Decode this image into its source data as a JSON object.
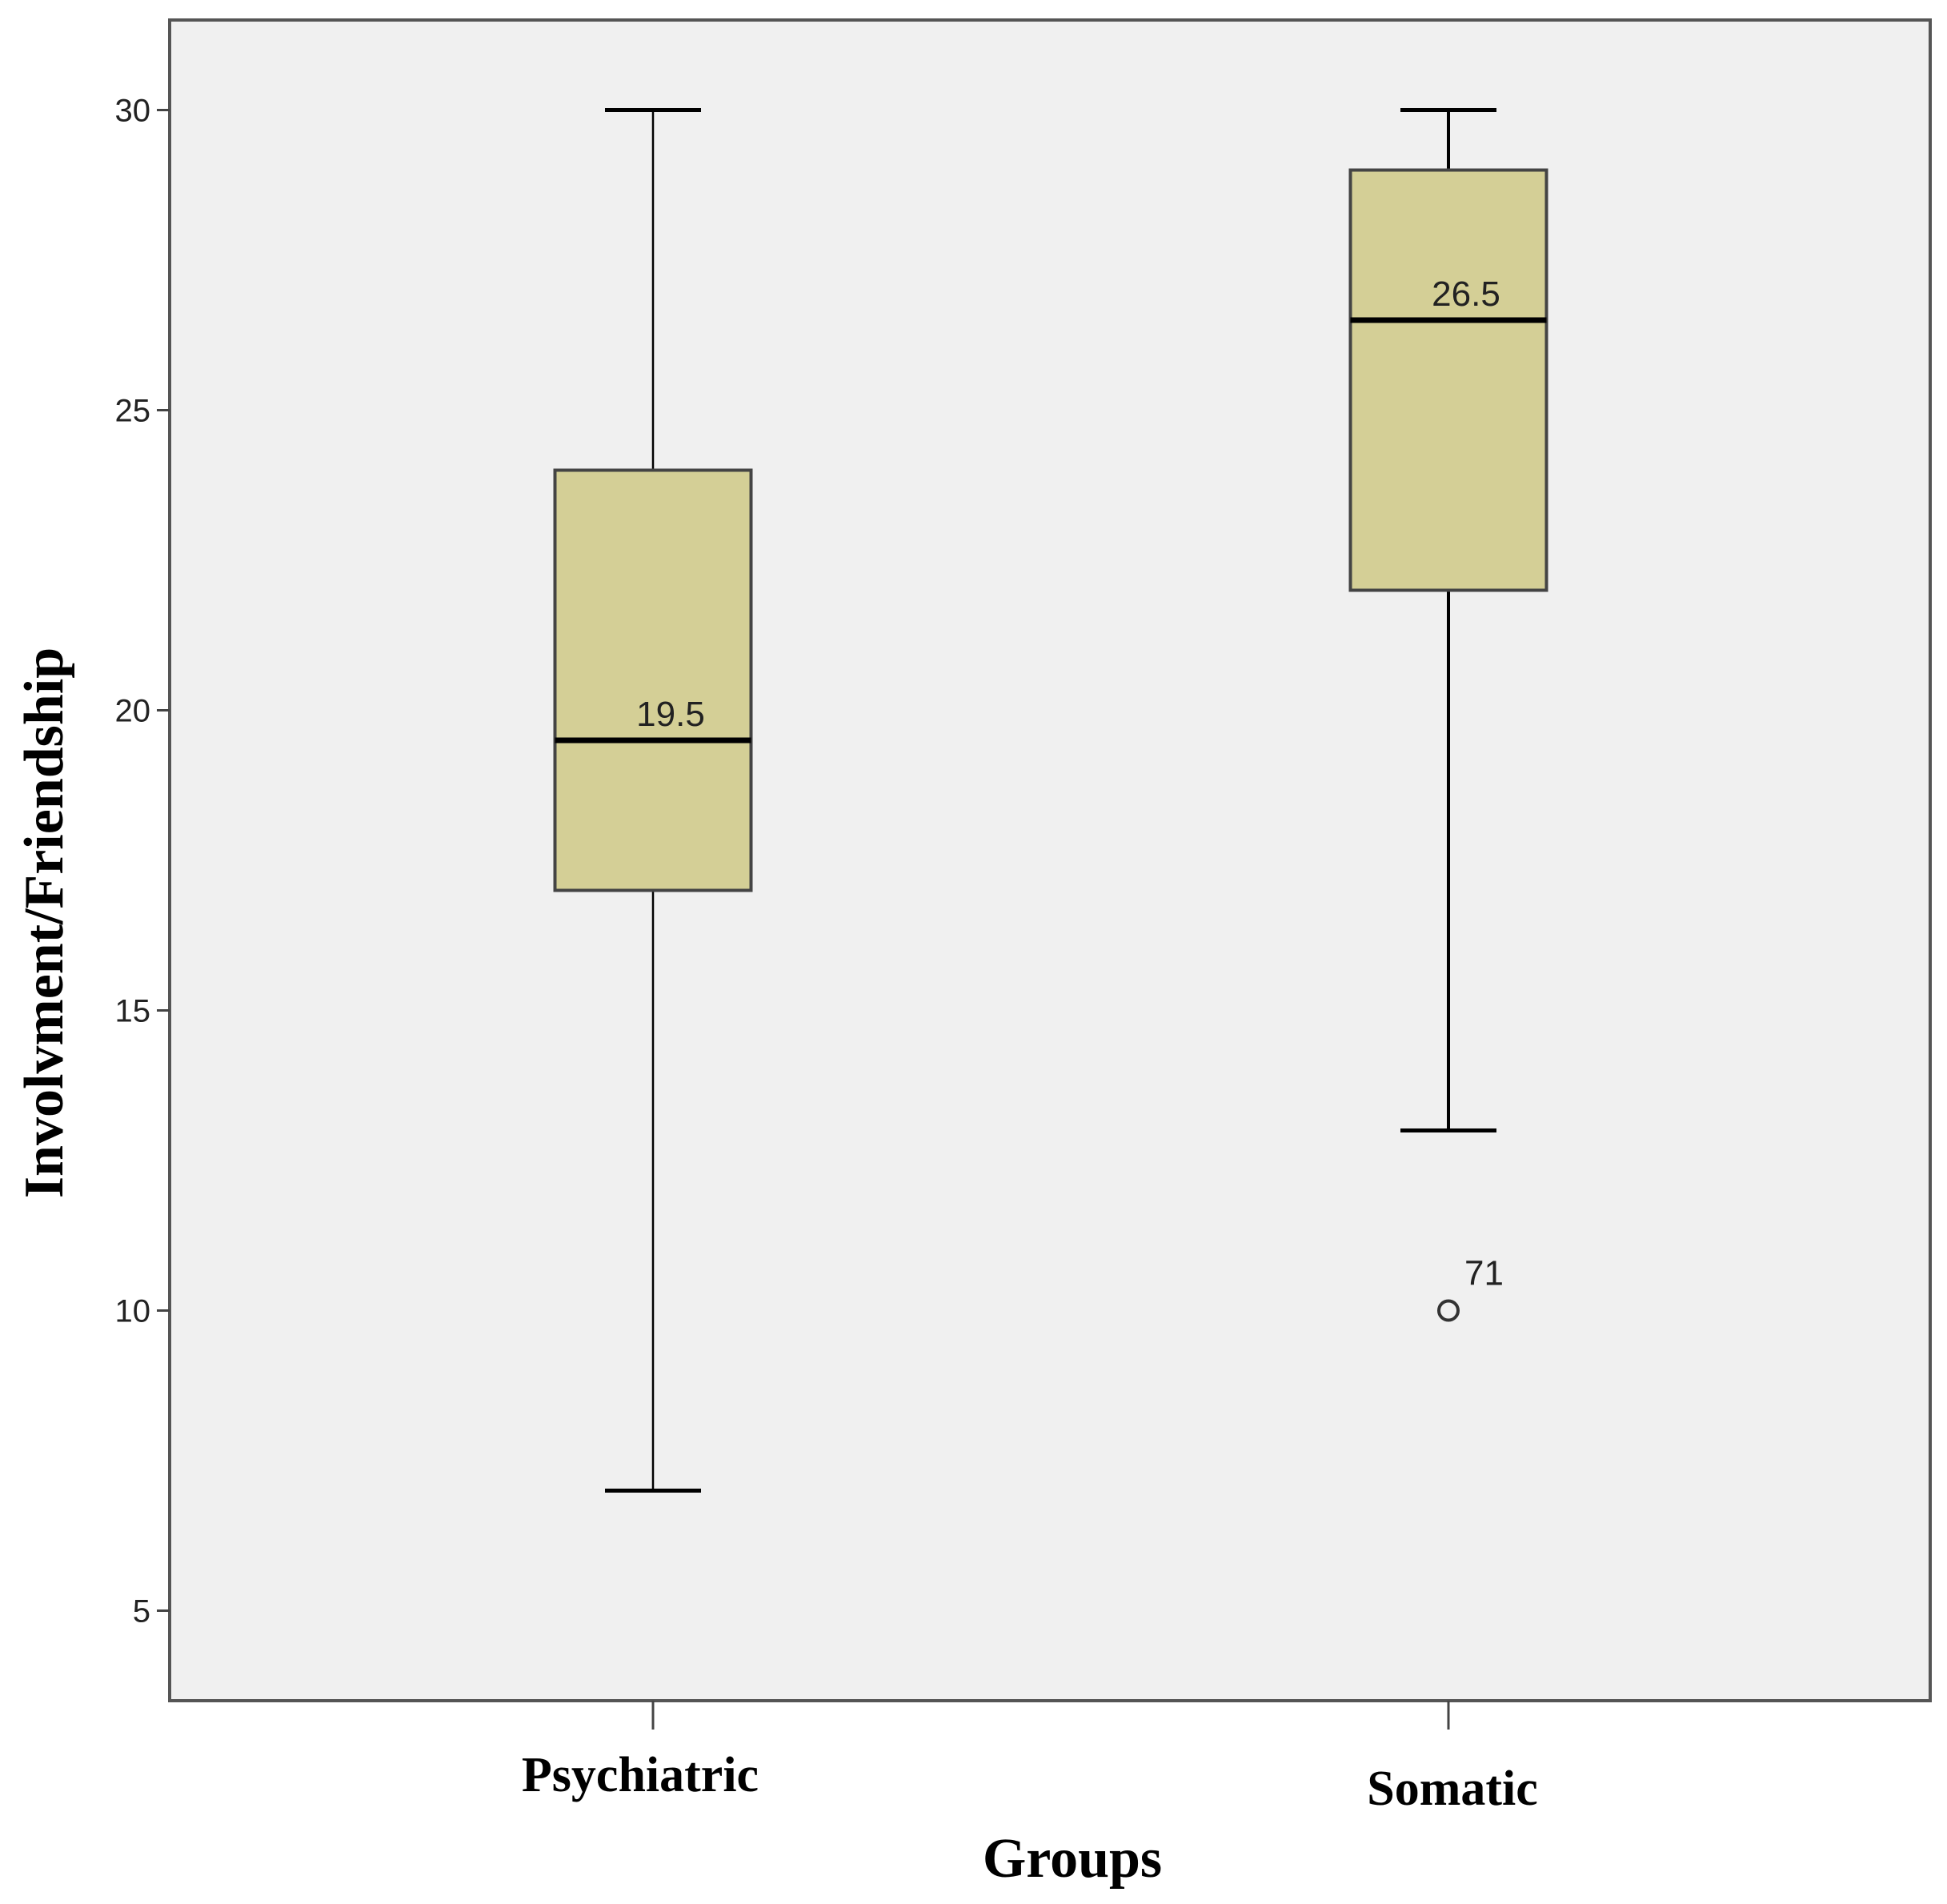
{
  "chart_data": {
    "type": "boxplot",
    "xlabel": "Groups",
    "ylabel": "Involvment/Friendship",
    "ylim": [
      3.5,
      31.5
    ],
    "yticks": [
      5,
      10,
      15,
      20,
      25,
      30
    ],
    "grid": false,
    "categories": [
      "Psychiatric",
      "Somatic"
    ],
    "boxes": [
      {
        "category": "Psychiatric",
        "whisker_low": 7,
        "q1": 17,
        "median": 19.5,
        "q3": 24,
        "whisker_high": 30,
        "median_label": "19.5",
        "outliers": []
      },
      {
        "category": "Somatic",
        "whisker_low": 13,
        "q1": 22,
        "median": 26.5,
        "q3": 29,
        "whisker_high": 30,
        "median_label": "26.5",
        "outliers": [
          {
            "value": 10,
            "label": "71"
          }
        ]
      }
    ],
    "colors": {
      "plot_background": "#f0f0f0",
      "box_fill": "#d4cf96",
      "stroke": "#000000"
    }
  }
}
